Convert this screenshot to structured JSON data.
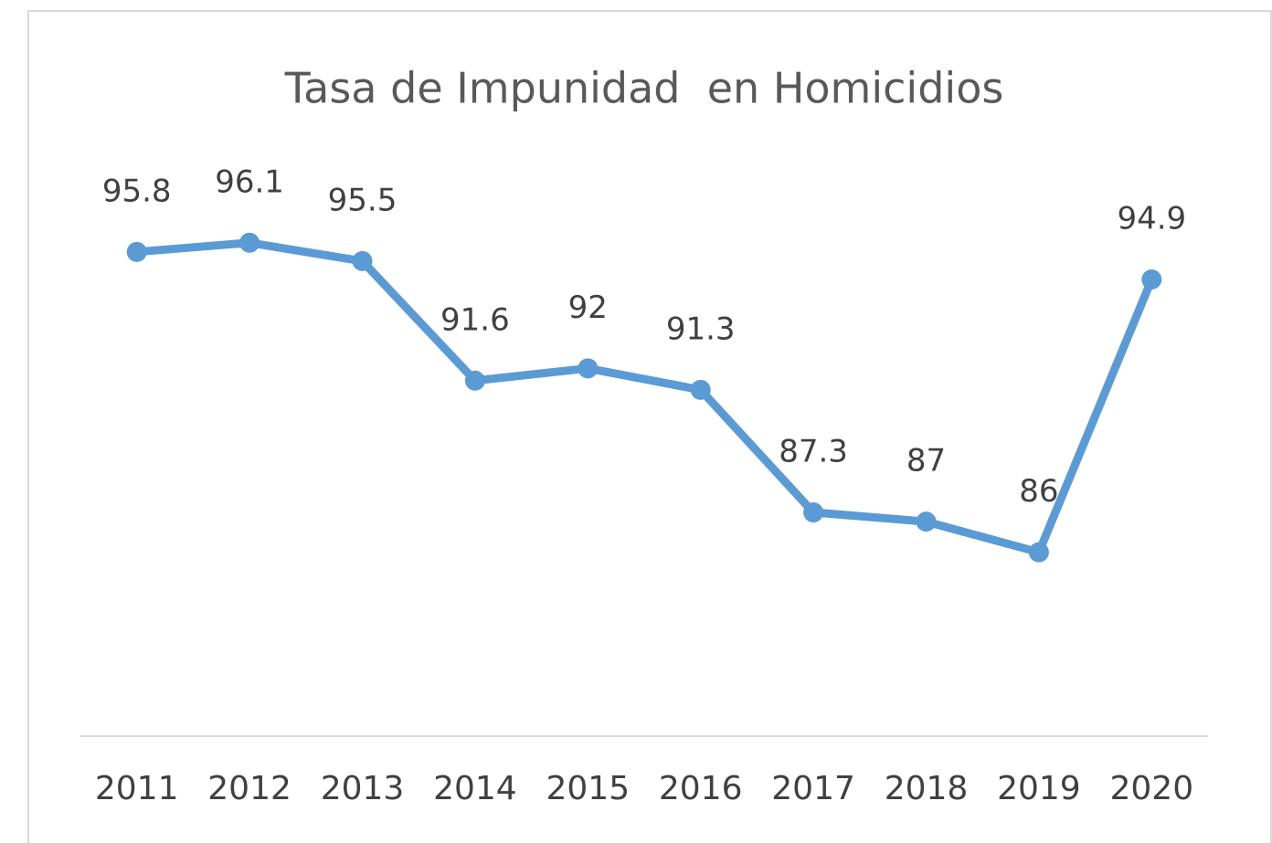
{
  "chart_data": {
    "type": "line",
    "title": "Tasa de Impunidad  en Homicidios",
    "categories": [
      "2011",
      "2012",
      "2013",
      "2014",
      "2015",
      "2016",
      "2017",
      "2018",
      "2019",
      "2020"
    ],
    "values": [
      95.8,
      96.1,
      95.5,
      91.6,
      92,
      91.3,
      87.3,
      87,
      86,
      94.9
    ],
    "color": "#5b9bd5",
    "ylim": [
      80,
      98
    ],
    "grid": false
  }
}
